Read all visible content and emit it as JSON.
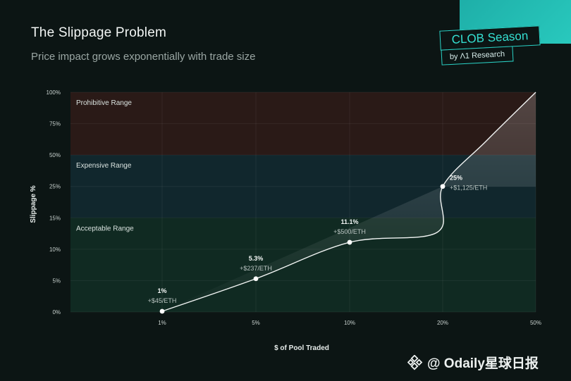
{
  "header": {
    "title": "The Slippage Problem",
    "subtitle": "Price impact grows exponentially with trade size"
  },
  "brand": {
    "name": "CLOB Season",
    "byline": "by Λ1 Research",
    "accent": "#2ad2c6"
  },
  "watermark": {
    "text": "@ Odaily星球日报",
    "icon": "binance-diamond-icon"
  },
  "chart_data": {
    "type": "line",
    "xlabel": "$ of Pool Traded",
    "ylabel": "Slippage %",
    "x_ticks": [
      "1%",
      "5%",
      "10%",
      "20%",
      "50%"
    ],
    "y_ticks": [
      "0%",
      "5%",
      "10%",
      "15%",
      "25%",
      "50%",
      "75%",
      "100%"
    ],
    "y_scale": "piecewise",
    "grid": true,
    "zones": [
      {
        "label": "Prohibitive Range",
        "from": "50%",
        "to": "100%",
        "color": "#2a1a17"
      },
      {
        "label": "Expensive Range",
        "from": "15%",
        "to": "50%",
        "color": "#11272d"
      },
      {
        "label": "Acceptable Range",
        "from": "0%",
        "to": "15%",
        "color": "#102a22"
      }
    ],
    "series": [
      {
        "x": [
          "1%",
          "5%",
          "10%",
          "20%",
          "50%"
        ],
        "y": [
          1,
          5.3,
          11.1,
          25,
          100
        ]
      }
    ],
    "points": [
      {
        "x": "1%",
        "label": "1%",
        "sublabel": "+$45/ETH"
      },
      {
        "x": "5%",
        "label": "5.3%",
        "sublabel": "+$237/ETH"
      },
      {
        "x": "10%",
        "label": "11.1%",
        "sublabel": "+$500/ETH"
      },
      {
        "x": "20%",
        "label": "25%",
        "sublabel": "+$1,125/ETH"
      }
    ]
  }
}
